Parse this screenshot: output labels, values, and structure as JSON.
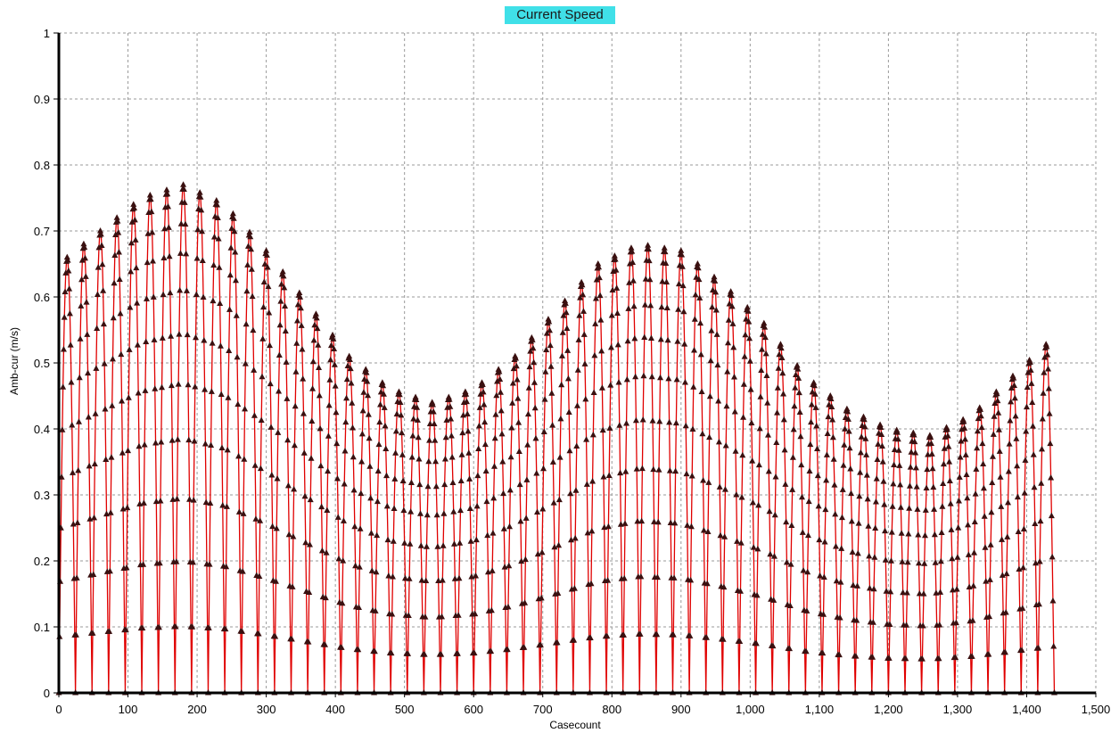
{
  "chart_data": {
    "type": "line",
    "title": "Current Speed",
    "xlabel": "Casecount",
    "ylabel": "Amb-cur (m/s)",
    "xlim": [
      0,
      1500
    ],
    "ylim": [
      0,
      1
    ],
    "grid": true,
    "x_tick_labels": [
      "0",
      "100",
      "200",
      "300",
      "400",
      "500",
      "600",
      "700",
      "800",
      "900",
      "1,000",
      "1,100",
      "1,200",
      "1,300",
      "1,400",
      "1,500"
    ],
    "y_tick_labels": [
      "0",
      "0.1",
      "0.2",
      "0.3",
      "0.4",
      "0.5",
      "0.6",
      "0.7",
      "0.8",
      "0.9",
      "1"
    ],
    "x_ticks": [
      0,
      100,
      200,
      300,
      400,
      500,
      600,
      700,
      800,
      900,
      1000,
      1100,
      1200,
      1300,
      1400,
      1500
    ],
    "y_ticks": [
      0,
      0.1,
      0.2,
      0.3,
      0.4,
      0.5,
      0.6,
      0.7,
      0.8,
      0.9,
      1
    ],
    "series": [
      {
        "color": "#e00000",
        "marker_color": "#3a1010",
        "cycle_length": 24,
        "samples_per_cycle": 24,
        "x_start": 0,
        "x_end": 1440,
        "peak_envelope": {
          "x": [
            0,
            60,
            120,
            180,
            240,
            300,
            360,
            420,
            480,
            540,
            600,
            660,
            720,
            780,
            840,
            900,
            960,
            1020,
            1080,
            1140,
            1200,
            1260,
            1320,
            1380,
            1440
          ],
          "y": [
            0.65,
            0.7,
            0.75,
            0.77,
            0.74,
            0.67,
            0.59,
            0.51,
            0.46,
            0.44,
            0.46,
            0.51,
            0.58,
            0.65,
            0.68,
            0.67,
            0.62,
            0.56,
            0.48,
            0.43,
            0.4,
            0.39,
            0.42,
            0.48,
            0.54
          ]
        }
      }
    ]
  }
}
